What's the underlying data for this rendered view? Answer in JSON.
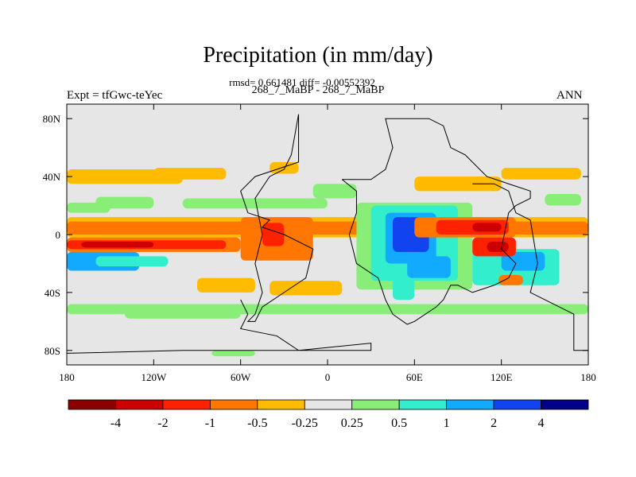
{
  "chart_data": {
    "type": "heatmap",
    "title": "Precipitation (in mm/day)",
    "stats": "rmsd= 0.661481 diff= -0.00552392",
    "cases": "268_7_MaBP - 268_7_MaBP",
    "left_label": "Expt = tfGwc-teYec",
    "right_label": "ANN",
    "xlabel": "",
    "ylabel": "",
    "xlim": [
      -180,
      180
    ],
    "ylim": [
      -90,
      90
    ],
    "x_ticks": [
      {
        "value": -180,
        "label": "180"
      },
      {
        "value": -120,
        "label": "120W"
      },
      {
        "value": -60,
        "label": "60W"
      },
      {
        "value": 0,
        "label": "0"
      },
      {
        "value": 60,
        "label": "60E"
      },
      {
        "value": 120,
        "label": "120E"
      },
      {
        "value": 180,
        "label": "180"
      }
    ],
    "y_ticks": [
      {
        "value": 80,
        "label": "80N"
      },
      {
        "value": 40,
        "label": "40N"
      },
      {
        "value": 0,
        "label": "0"
      },
      {
        "value": -40,
        "label": "40S"
      },
      {
        "value": -80,
        "label": "80S"
      }
    ],
    "colorbar": {
      "colors": [
        "#8b0000",
        "#cc0000",
        "#ff2200",
        "#ff7700",
        "#ffbb00",
        "#e6e6e6",
        "#88ee77",
        "#33eecc",
        "#11aaff",
        "#1144ee",
        "#000088"
      ],
      "labels": [
        "-4",
        "-2",
        "-1",
        "-0.5",
        "-0.25",
        "0.25",
        "0.5",
        "1",
        "2",
        "4"
      ]
    },
    "regions": [
      {
        "lon": [
          -180,
          180
        ],
        "lat": [
          -2,
          12
        ],
        "level": 4
      },
      {
        "lon": [
          -180,
          180
        ],
        "lat": [
          0,
          9
        ],
        "level": 3
      },
      {
        "lon": [
          -180,
          -60
        ],
        "lat": [
          -12,
          -2
        ],
        "level": 3
      },
      {
        "lon": [
          -180,
          -70
        ],
        "lat": [
          -10,
          -4
        ],
        "level": 2
      },
      {
        "lon": [
          -170,
          -120
        ],
        "lat": [
          -9,
          -5
        ],
        "level": 1
      },
      {
        "lon": [
          -180,
          -130
        ],
        "lat": [
          -25,
          -12
        ],
        "level": 8
      },
      {
        "lon": [
          -160,
          -110
        ],
        "lat": [
          -22,
          -15
        ],
        "level": 7
      },
      {
        "lon": [
          -60,
          -10
        ],
        "lat": [
          -18,
          12
        ],
        "level": 3
      },
      {
        "lon": [
          -45,
          -30
        ],
        "lat": [
          -8,
          8
        ],
        "level": 2
      },
      {
        "lon": [
          -90,
          -50
        ],
        "lat": [
          -40,
          -30
        ],
        "level": 4
      },
      {
        "lon": [
          -40,
          10
        ],
        "lat": [
          -42,
          -32
        ],
        "level": 4
      },
      {
        "lon": [
          -180,
          -100
        ],
        "lat": [
          35,
          45
        ],
        "level": 4
      },
      {
        "lon": [
          -120,
          -70
        ],
        "lat": [
          38,
          46
        ],
        "level": 4
      },
      {
        "lon": [
          -160,
          -120
        ],
        "lat": [
          18,
          26
        ],
        "level": 6
      },
      {
        "lon": [
          -180,
          -150
        ],
        "lat": [
          15,
          22
        ],
        "level": 6
      },
      {
        "lon": [
          -40,
          -20
        ],
        "lat": [
          42,
          50
        ],
        "level": 4
      },
      {
        "lon": [
          60,
          120
        ],
        "lat": [
          30,
          40
        ],
        "level": 4
      },
      {
        "lon": [
          120,
          175
        ],
        "lat": [
          38,
          46
        ],
        "level": 4
      },
      {
        "lon": [
          150,
          175
        ],
        "lat": [
          20,
          28
        ],
        "level": 6
      },
      {
        "lon": [
          -180,
          180
        ],
        "lat": [
          -55,
          -48
        ],
        "level": 6
      },
      {
        "lon": [
          -140,
          -60
        ],
        "lat": [
          -58,
          -50
        ],
        "level": 6
      },
      {
        "lon": [
          -80,
          -50
        ],
        "lat": [
          -84,
          -80
        ],
        "level": 6
      },
      {
        "lon": [
          20,
          100
        ],
        "lat": [
          -38,
          22
        ],
        "level": 6
      },
      {
        "lon": [
          30,
          90
        ],
        "lat": [
          -32,
          20
        ],
        "level": 7
      },
      {
        "lon": [
          40,
          75
        ],
        "lat": [
          -20,
          15
        ],
        "level": 8
      },
      {
        "lon": [
          45,
          70
        ],
        "lat": [
          -12,
          12
        ],
        "level": 9
      },
      {
        "lon": [
          50,
          65
        ],
        "lat": [
          -8,
          2
        ],
        "level": 9
      },
      {
        "lon": [
          55,
          85
        ],
        "lat": [
          -30,
          -15
        ],
        "level": 8
      },
      {
        "lon": [
          45,
          60
        ],
        "lat": [
          -45,
          -30
        ],
        "level": 7
      },
      {
        "lon": [
          100,
          160
        ],
        "lat": [
          -35,
          -10
        ],
        "level": 7
      },
      {
        "lon": [
          120,
          150
        ],
        "lat": [
          -25,
          -12
        ],
        "level": 8
      },
      {
        "lon": [
          60,
          130
        ],
        "lat": [
          -2,
          12
        ],
        "level": 3
      },
      {
        "lon": [
          75,
          125
        ],
        "lat": [
          0,
          10
        ],
        "level": 2
      },
      {
        "lon": [
          100,
          120
        ],
        "lat": [
          2,
          8
        ],
        "level": 1
      },
      {
        "lon": [
          100,
          130
        ],
        "lat": [
          -15,
          -2
        ],
        "level": 2
      },
      {
        "lon": [
          110,
          125
        ],
        "lat": [
          -12,
          -5
        ],
        "level": 1
      },
      {
        "lon": [
          118,
          135
        ],
        "lat": [
          -35,
          -28
        ],
        "level": 3
      },
      {
        "lon": [
          -100,
          0
        ],
        "lat": [
          18,
          25
        ],
        "level": 6
      },
      {
        "lon": [
          -10,
          20
        ],
        "lat": [
          25,
          35
        ],
        "level": 6
      }
    ],
    "outlines": [
      {
        "name": "north-america",
        "points": [
          [
            -20,
            83
          ],
          [
            -20,
            50
          ],
          [
            -50,
            40
          ],
          [
            -60,
            30
          ],
          [
            -55,
            15
          ],
          [
            -40,
            10
          ],
          [
            -45,
            5
          ],
          [
            -30,
            0
          ],
          [
            -20,
            -5
          ],
          [
            -10,
            -10
          ],
          [
            -15,
            -30
          ],
          [
            -30,
            -40
          ],
          [
            -45,
            -50
          ],
          [
            -50,
            -60
          ],
          [
            -55,
            -60
          ],
          [
            -50,
            -55
          ],
          [
            -45,
            -40
          ],
          [
            -50,
            -20
          ],
          [
            -45,
            0
          ],
          [
            -50,
            25
          ],
          [
            -40,
            40
          ],
          [
            -30,
            45
          ],
          [
            -25,
            55
          ],
          [
            -20,
            83
          ]
        ]
      },
      {
        "name": "south-landmass",
        "points": [
          [
            -60,
            -45
          ],
          [
            -55,
            -55
          ],
          [
            -60,
            -65
          ],
          [
            -35,
            -70
          ],
          [
            -20,
            -80
          ],
          [
            0,
            -78
          ],
          [
            30,
            -75
          ],
          [
            30,
            -80
          ],
          [
            -100,
            -80
          ],
          [
            -180,
            -82
          ]
        ]
      },
      {
        "name": "central-continent",
        "points": [
          [
            10,
            38
          ],
          [
            30,
            38
          ],
          [
            40,
            45
          ],
          [
            45,
            60
          ],
          [
            40,
            80
          ],
          [
            70,
            80
          ],
          [
            80,
            75
          ],
          [
            85,
            60
          ],
          [
            95,
            55
          ],
          [
            110,
            40
          ],
          [
            125,
            35
          ],
          [
            140,
            30
          ],
          [
            140,
            25
          ],
          [
            130,
            20
          ],
          [
            125,
            15
          ],
          [
            120,
            -10
          ],
          [
            130,
            -20
          ],
          [
            125,
            -30
          ],
          [
            115,
            -35
          ],
          [
            100,
            -40
          ],
          [
            90,
            -35
          ],
          [
            85,
            -35
          ],
          [
            80,
            -45
          ],
          [
            75,
            -50
          ],
          [
            60,
            -60
          ],
          [
            55,
            -62
          ],
          [
            45,
            -55
          ],
          [
            40,
            -45
          ],
          [
            35,
            -30
          ],
          [
            20,
            -20
          ],
          [
            15,
            0
          ],
          [
            20,
            15
          ],
          [
            20,
            30
          ],
          [
            10,
            38
          ]
        ]
      },
      {
        "name": "east-continent",
        "points": [
          [
            100,
            35
          ],
          [
            115,
            35
          ],
          [
            125,
            30
          ],
          [
            130,
            15
          ],
          [
            140,
            10
          ],
          [
            145,
            -20
          ],
          [
            140,
            -40
          ],
          [
            160,
            -50
          ],
          [
            170,
            -55
          ],
          [
            170,
            -80
          ],
          [
            180,
            -80
          ]
        ]
      }
    ]
  }
}
